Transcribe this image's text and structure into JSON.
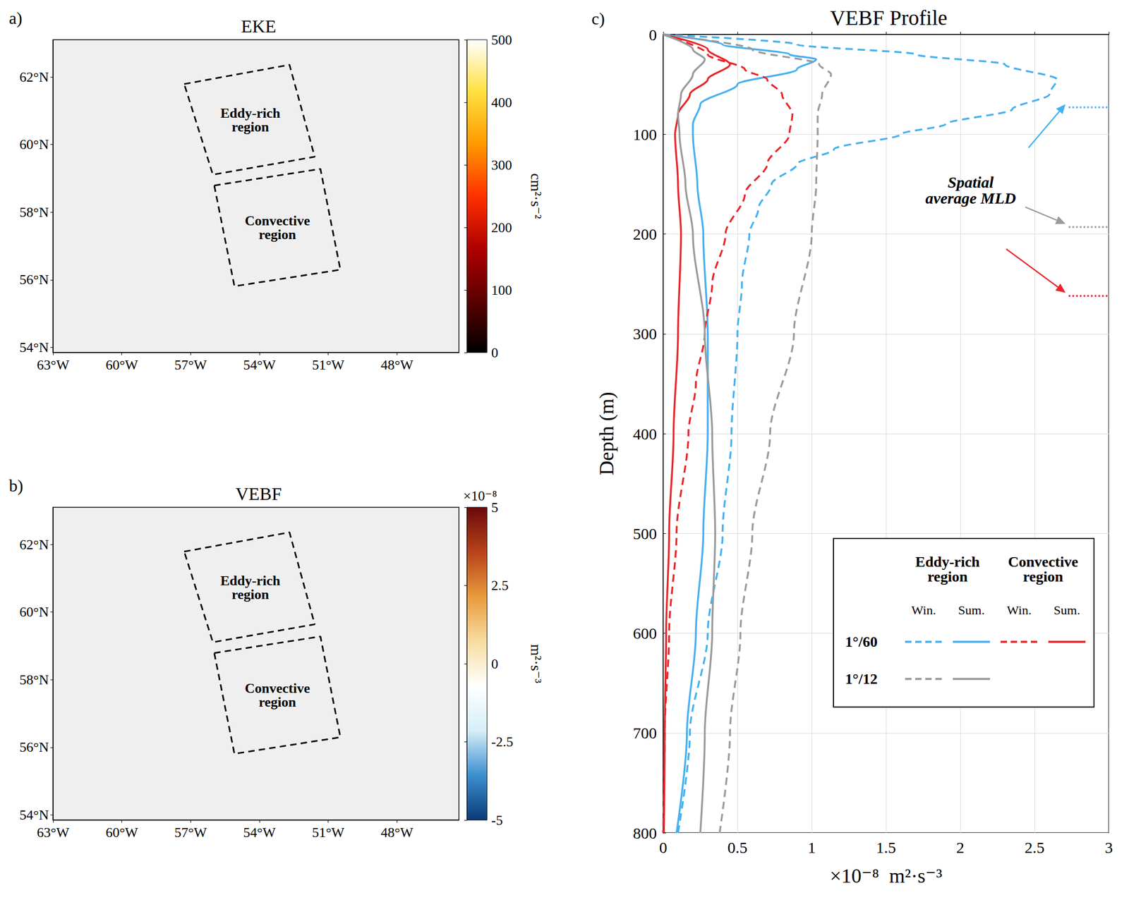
{
  "chart_data": [
    {
      "type": "map",
      "panel": "a)",
      "title": "EKE",
      "xlim": [
        -63,
        -45.3
      ],
      "ylim": [
        53.85,
        63.1
      ],
      "xticks": [
        {
          "value": -63,
          "label": "63°W"
        },
        {
          "value": -60,
          "label": "60°W"
        },
        {
          "value": -57,
          "label": "57°W"
        },
        {
          "value": -54,
          "label": "54°W"
        },
        {
          "value": -51,
          "label": "51°W"
        },
        {
          "value": -48,
          "label": "48°W"
        }
      ],
      "yticks": [
        {
          "value": 54,
          "label": "54°N"
        },
        {
          "value": 56,
          "label": "56°N"
        },
        {
          "value": 58,
          "label": "58°N"
        },
        {
          "value": 60,
          "label": "60°N"
        },
        {
          "value": 62,
          "label": "62°N"
        }
      ],
      "regions": [
        {
          "name": "Eddy-rich region",
          "lon": [
            -57.28,
            -52.69,
            -51.59,
            -56.03
          ],
          "lat": [
            61.79,
            62.36,
            59.64,
            59.11
          ]
        },
        {
          "name": "Convective region",
          "lon": [
            -55.97,
            -51.34,
            -50.47,
            -55.09
          ],
          "lat": [
            58.79,
            59.28,
            56.3,
            55.81
          ]
        }
      ],
      "colorbar": {
        "lim": [
          0,
          500
        ],
        "ticks": [
          0,
          100,
          200,
          300,
          400,
          500
        ],
        "label": "cm²·s⁻²",
        "colors": [
          "#000000",
          "#5c0000",
          "#b00000",
          "#ff3000",
          "#ff9a00",
          "#ffe040",
          "#ffffff"
        ]
      }
    },
    {
      "type": "map",
      "panel": "b)",
      "title": "VEBF",
      "xlim": [
        -63,
        -45.3
      ],
      "ylim": [
        53.85,
        63.1
      ],
      "xticks": [
        {
          "value": -63,
          "label": "63°W"
        },
        {
          "value": -60,
          "label": "60°W"
        },
        {
          "value": -57,
          "label": "57°W"
        },
        {
          "value": -54,
          "label": "54°W"
        },
        {
          "value": -51,
          "label": "51°W"
        },
        {
          "value": -48,
          "label": "48°W"
        }
      ],
      "yticks": [
        {
          "value": 54,
          "label": "54°N"
        },
        {
          "value": 56,
          "label": "56°N"
        },
        {
          "value": 58,
          "label": "58°N"
        },
        {
          "value": 60,
          "label": "60°N"
        },
        {
          "value": 62,
          "label": "62°N"
        }
      ],
      "regions": [
        {
          "name": "Eddy-rich region",
          "lon": [
            -57.28,
            -52.69,
            -51.59,
            -56.03
          ],
          "lat": [
            61.79,
            62.36,
            59.64,
            59.11
          ]
        },
        {
          "name": "Convective region",
          "lon": [
            -55.97,
            -51.34,
            -50.47,
            -55.09
          ],
          "lat": [
            58.79,
            59.28,
            56.3,
            55.81
          ]
        }
      ],
      "colorbar": {
        "lim": [
          -5,
          5
        ],
        "ticks": [
          -5,
          -2.5,
          0,
          2.5,
          5
        ],
        "label": "m²·s⁻³",
        "title": "×10⁻⁸",
        "colors": [
          "#0a3a78",
          "#3b8fd0",
          "#d6eef8",
          "#ffffff",
          "#f8dca0",
          "#e89a3c",
          "#b8421a",
          "#6a0a0a"
        ]
      }
    },
    {
      "type": "line",
      "panel": "c)",
      "title": "VEBF Profile",
      "x_label": "×10⁻⁸  m²·s⁻³",
      "y_label": "Depth (m)",
      "xlim": [
        0,
        3
      ],
      "xticks": [
        0,
        0.5,
        1,
        1.5,
        2,
        2.5,
        3
      ],
      "ylim": [
        0,
        800
      ],
      "yticks": [
        0,
        100,
        200,
        300,
        400,
        500,
        600,
        700,
        800
      ],
      "grid": true,
      "legend": "lower right",
      "series": [
        {
          "resolution": "1°/60",
          "region": "Eddy-rich region",
          "season": "Win.",
          "color": "#45b0f0",
          "line_style": "dashed",
          "y": [
            0,
            10,
            20,
            30,
            45,
            60,
            75,
            90,
            100,
            115,
            130,
            150,
            175,
            200,
            250,
            300,
            400,
            500,
            600,
            700,
            800
          ],
          "x": [
            0,
            0.9,
            1.7,
            2.3,
            2.65,
            2.6,
            2.35,
            1.9,
            1.6,
            1.15,
            0.9,
            0.73,
            0.64,
            0.58,
            0.53,
            0.5,
            0.46,
            0.4,
            0.3,
            0.18,
            0.1
          ]
        },
        {
          "resolution": "1°/60",
          "region": "Eddy-rich region",
          "season": "Sum.",
          "color": "#45b0f0",
          "line_style": "solid",
          "y": [
            0,
            10,
            20,
            25,
            35,
            50,
            70,
            90,
            100,
            150,
            200,
            300,
            400,
            500,
            600,
            700,
            800
          ],
          "x": [
            0,
            0.4,
            0.85,
            1.03,
            0.9,
            0.5,
            0.25,
            0.2,
            0.2,
            0.23,
            0.27,
            0.3,
            0.3,
            0.27,
            0.22,
            0.16,
            0.09
          ]
        },
        {
          "resolution": "1°/60",
          "region": "Convective region",
          "season": "Win.",
          "color": "#e8262b",
          "line_style": "dashed",
          "y": [
            0,
            20,
            35,
            45,
            60,
            80,
            100,
            130,
            160,
            200,
            250,
            300,
            350,
            400,
            500,
            600,
            700,
            800
          ],
          "x": [
            0,
            0.3,
            0.55,
            0.7,
            0.8,
            0.87,
            0.85,
            0.7,
            0.55,
            0.42,
            0.33,
            0.28,
            0.22,
            0.17,
            0.09,
            0.04,
            0.01,
            0
          ]
        },
        {
          "resolution": "1°/60",
          "region": "Convective region",
          "season": "Sum.",
          "color": "#e8262b",
          "line_style": "solid",
          "y": [
            0,
            15,
            30,
            45,
            60,
            80,
            100,
            150,
            200,
            300,
            400,
            500,
            600,
            700,
            800
          ],
          "x": [
            0,
            0.3,
            0.45,
            0.3,
            0.18,
            0.1,
            0.08,
            0.1,
            0.12,
            0.1,
            0.07,
            0.04,
            0.02,
            0.01,
            0.005
          ]
        },
        {
          "resolution": "1°/12",
          "region": "Eddy-rich region",
          "season": "Win.",
          "color": "#9a9a9a",
          "line_style": "dashed",
          "y": [
            0,
            15,
            30,
            40,
            60,
            80,
            100,
            150,
            200,
            300,
            400,
            500,
            600,
            700,
            800
          ],
          "x": [
            0,
            0.6,
            1.05,
            1.13,
            1.07,
            1.04,
            1.04,
            1.03,
            1.0,
            0.88,
            0.72,
            0.6,
            0.52,
            0.45,
            0.38
          ]
        },
        {
          "resolution": "1°/12",
          "region": "Eddy-rich region",
          "season": "Sum.",
          "color": "#9a9a9a",
          "line_style": "solid",
          "y": [
            0,
            15,
            25,
            40,
            60,
            80,
            100,
            150,
            200,
            300,
            400,
            500,
            600,
            700,
            800
          ],
          "x": [
            0,
            0.2,
            0.28,
            0.2,
            0.12,
            0.1,
            0.11,
            0.15,
            0.2,
            0.28,
            0.33,
            0.35,
            0.33,
            0.28,
            0.25
          ]
        }
      ],
      "annotation": "Spatial average MLD",
      "mld": [
        {
          "depth": 73,
          "color": "#45b0f0"
        },
        {
          "depth": 193,
          "color": "#9a9a9a"
        },
        {
          "depth": 262,
          "color": "#e8262b"
        }
      ]
    }
  ]
}
